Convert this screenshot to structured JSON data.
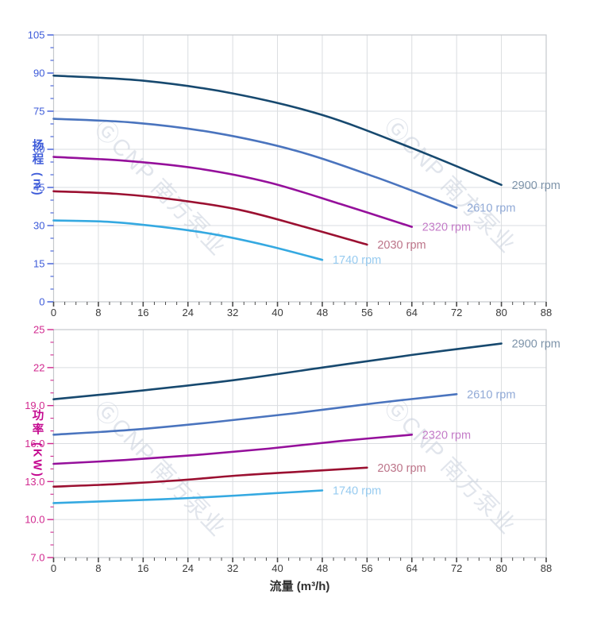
{
  "page": {
    "background": "#ffffff"
  },
  "x_axis": {
    "title": "流量 (m³/h)",
    "min": 0,
    "max": 88,
    "major_step": 8,
    "minor_step": 2,
    "tick_labels": [
      "0",
      "8",
      "16",
      "24",
      "32",
      "40",
      "48",
      "56",
      "64",
      "72",
      "80",
      "88"
    ],
    "tick_color": "#4a4a4a",
    "label_color": "#3a3a3a",
    "title_color": "#2e2e2e"
  },
  "watermark": {
    "text": "ⒼCNP 南方泵业",
    "color": "#c9d1dd",
    "opacity": 0.55
  },
  "grid": {
    "line_color": "#dadde0",
    "border_color": "#c5c9cd"
  },
  "chart_data": [
    {
      "type": "line",
      "name": "head-vs-flow",
      "y_title": "扬程 (m)",
      "xlabel": "流量 (m³/h)",
      "ylabel": "扬程 (m)",
      "xlim": [
        0,
        88
      ],
      "ylim": [
        0,
        105
      ],
      "y_major_step": 15,
      "y_minor_step": 5,
      "y_tick_labels": [
        "0",
        "15",
        "30",
        "45",
        "60",
        "75",
        "90",
        "105"
      ],
      "axis_color": "#3d5bd9",
      "title_color": "#3d5bd9",
      "grid": true,
      "legend_position": "curve-end-labels",
      "series": [
        {
          "name": "2900 rpm",
          "color": "#17496f",
          "label_color": "#7d93a9",
          "points": [
            [
              0,
              89
            ],
            [
              16,
              87
            ],
            [
              32,
              82
            ],
            [
              48,
              73.5
            ],
            [
              64,
              60.5
            ],
            [
              80,
              46
            ]
          ]
        },
        {
          "name": "2610 rpm",
          "color": "#4a74be",
          "label_color": "#90a9d6",
          "points": [
            [
              0,
              72
            ],
            [
              14.4,
              70.5
            ],
            [
              28.8,
              66.5
            ],
            [
              43.2,
              59.5
            ],
            [
              57.6,
              49
            ],
            [
              72,
              37
            ]
          ]
        },
        {
          "name": "2320 rpm",
          "color": "#95109b",
          "label_color": "#c47cc8",
          "points": [
            [
              0,
              57
            ],
            [
              12.8,
              55.5
            ],
            [
              25.6,
              52.5
            ],
            [
              38.4,
              47
            ],
            [
              51.2,
              38.5
            ],
            [
              64,
              29.5
            ]
          ]
        },
        {
          "name": "2030 rpm",
          "color": "#9b1031",
          "label_color": "#bc7489",
          "points": [
            [
              0,
              43.5
            ],
            [
              11.2,
              42.5
            ],
            [
              22.4,
              40
            ],
            [
              33.6,
              36
            ],
            [
              44.8,
              29.5
            ],
            [
              56,
              22.5
            ]
          ]
        },
        {
          "name": "1740 rpm",
          "color": "#35a9e1",
          "label_color": "#97cbf0",
          "points": [
            [
              0,
              32
            ],
            [
              9.6,
              31.5
            ],
            [
              19.2,
              29.5
            ],
            [
              28.8,
              26.5
            ],
            [
              38.4,
              22
            ],
            [
              48,
              16.5
            ]
          ]
        }
      ]
    },
    {
      "type": "line",
      "name": "power-vs-flow",
      "y_title": "功率 (KW)",
      "xlabel": "流量 (m³/h)",
      "ylabel": "功率 (KW)",
      "xlim": [
        0,
        88
      ],
      "ylim": [
        7,
        25
      ],
      "y_major_step": 3,
      "y_minor_step": 1,
      "y_tick_labels": [
        "7.0",
        "10.0",
        "13.0",
        "16.0",
        "19.0",
        "22",
        "25"
      ],
      "axis_color": "#d1298f",
      "title_color": "#c4078f",
      "grid": true,
      "legend_position": "curve-end-labels",
      "series": [
        {
          "name": "2900 rpm",
          "color": "#17496f",
          "label_color": "#7d93a9",
          "points": [
            [
              0,
              19.5
            ],
            [
              16,
              20.2
            ],
            [
              32,
              21.0
            ],
            [
              48,
              22.0
            ],
            [
              64,
              23.0
            ],
            [
              80,
              23.9
            ]
          ]
        },
        {
          "name": "2610 rpm",
          "color": "#4a74be",
          "label_color": "#90a9d6",
          "points": [
            [
              0,
              16.7
            ],
            [
              14.4,
              17.1
            ],
            [
              28.8,
              17.7
            ],
            [
              43.2,
              18.4
            ],
            [
              57.6,
              19.2
            ],
            [
              72,
              19.9
            ]
          ]
        },
        {
          "name": "2320 rpm",
          "color": "#95109b",
          "label_color": "#c47cc8",
          "points": [
            [
              0,
              14.4
            ],
            [
              12.8,
              14.7
            ],
            [
              25.6,
              15.1
            ],
            [
              38.4,
              15.6
            ],
            [
              51.2,
              16.2
            ],
            [
              64,
              16.7
            ]
          ]
        },
        {
          "name": "2030 rpm",
          "color": "#9b1031",
          "label_color": "#bc7489",
          "points": [
            [
              0,
              12.6
            ],
            [
              11.2,
              12.8
            ],
            [
              22.4,
              13.1
            ],
            [
              33.6,
              13.5
            ],
            [
              44.8,
              13.8
            ],
            [
              56,
              14.1
            ]
          ]
        },
        {
          "name": "1740 rpm",
          "color": "#35a9e1",
          "label_color": "#97cbf0",
          "points": [
            [
              0,
              11.3
            ],
            [
              9.6,
              11.45
            ],
            [
              19.2,
              11.6
            ],
            [
              28.8,
              11.8
            ],
            [
              38.4,
              12.05
            ],
            [
              48,
              12.3
            ]
          ]
        }
      ]
    }
  ]
}
